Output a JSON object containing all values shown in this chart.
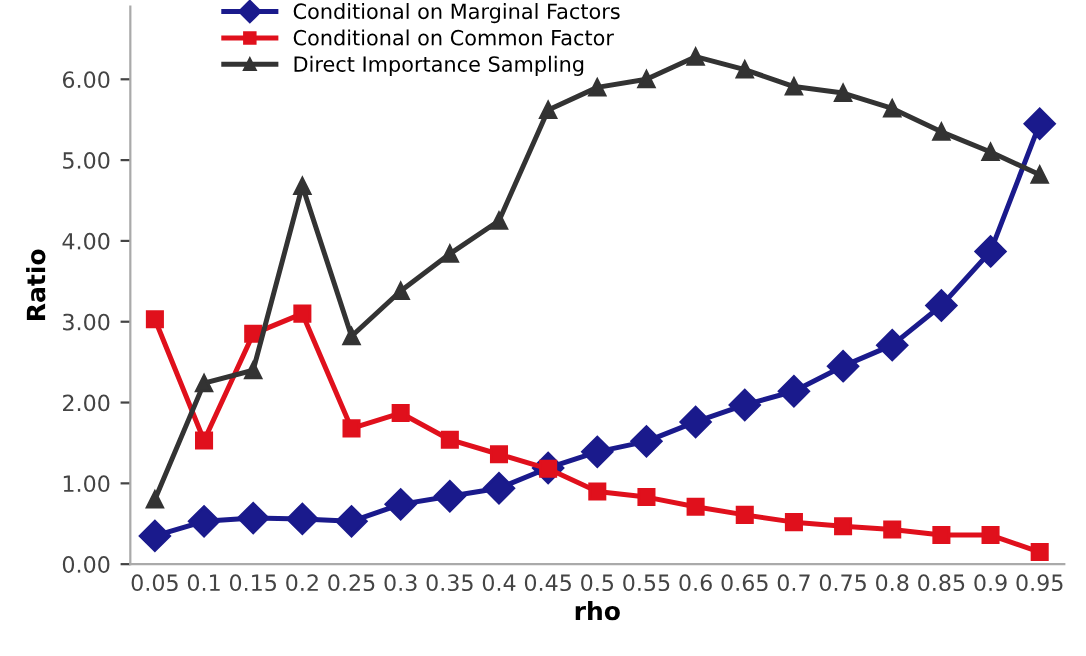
{
  "chart_data": {
    "type": "line",
    "xlabel": "rho",
    "ylabel": "Ratio",
    "categories": [
      "0.05",
      "0.1",
      "0.15",
      "0.2",
      "0.25",
      "0.3",
      "0.35",
      "0.4",
      "0.45",
      "0.5",
      "0.55",
      "0.6",
      "0.65",
      "0.7",
      "0.75",
      "0.8",
      "0.85",
      "0.9",
      "0.95"
    ],
    "series": [
      {
        "name": "Conditional on Marginal Factors",
        "color": "#1a1a8c",
        "marker": "diamond",
        "values": [
          0.35,
          0.53,
          0.57,
          0.56,
          0.53,
          0.74,
          0.84,
          0.94,
          1.19,
          1.39,
          1.52,
          1.76,
          1.97,
          2.14,
          2.45,
          2.71,
          3.2,
          3.87,
          5.45
        ]
      },
      {
        "name": "Conditional on Common Factor",
        "color": "#e0101c",
        "marker": "square",
        "values": [
          3.03,
          1.53,
          2.85,
          3.1,
          1.68,
          1.87,
          1.54,
          1.36,
          1.18,
          0.9,
          0.83,
          0.71,
          0.61,
          0.52,
          0.47,
          0.43,
          0.36,
          0.36,
          0.15
        ]
      },
      {
        "name": "Direct Importance Sampling",
        "color": "#333333",
        "marker": "triangle",
        "values": [
          0.8,
          2.24,
          2.4,
          4.68,
          2.82,
          3.38,
          3.84,
          4.25,
          5.62,
          5.9,
          6.0,
          6.28,
          6.12,
          5.91,
          5.83,
          5.64,
          5.35,
          5.1,
          4.82
        ]
      }
    ],
    "ylim": [
      0,
      6.9
    ],
    "yticks": [
      {
        "value": 0,
        "label": "0.00"
      },
      {
        "value": 1,
        "label": "1.00"
      },
      {
        "value": 2,
        "label": "2.00"
      },
      {
        "value": 3,
        "label": "3.00"
      },
      {
        "value": 4,
        "label": "4.00"
      },
      {
        "value": 5,
        "label": "5.00"
      },
      {
        "value": 6,
        "label": "6.00"
      }
    ],
    "grid": false,
    "legend": "top left",
    "line_style": "solid"
  }
}
